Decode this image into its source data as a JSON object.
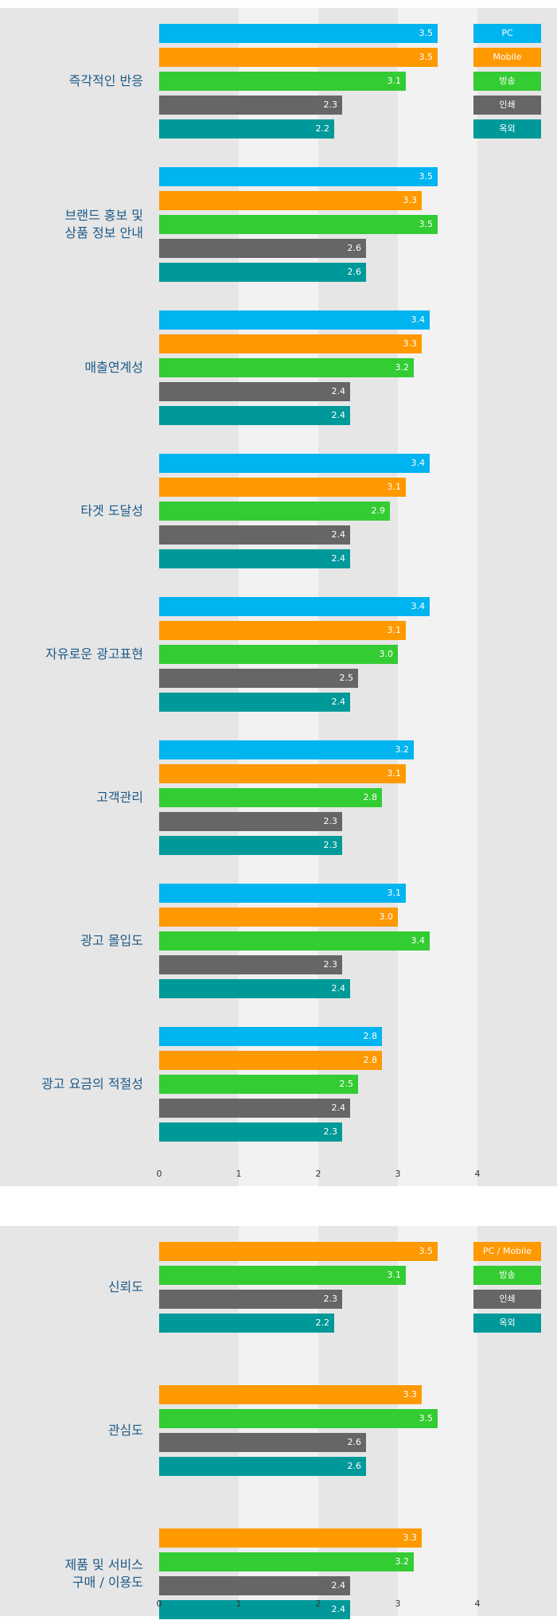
{
  "colors": {
    "PC": "#00b4f0",
    "Mobile": "#ff9900",
    "방송": "#33cc33",
    "인쇄": "#666666",
    "옥외": "#009999",
    "PC / Mobile": "#ff9900"
  },
  "chart_data": [
    {
      "type": "bar",
      "orientation": "horizontal",
      "categories": [
        "즉각적인 반응",
        "브랜드 홍보 및\n상품 정보 안내",
        "매출연계성",
        "타겟 도달성",
        "자유로운 광고표현",
        "고객관리",
        "광고 몰입도",
        "광고 요금의 적절성"
      ],
      "series": [
        {
          "name": "PC",
          "values": [
            3.5,
            3.5,
            3.4,
            3.4,
            3.4,
            3.2,
            3.1,
            2.8
          ]
        },
        {
          "name": "Mobile",
          "values": [
            3.5,
            3.3,
            3.3,
            3.1,
            3.1,
            3.1,
            3.0,
            2.8
          ]
        },
        {
          "name": "방송",
          "values": [
            3.1,
            3.5,
            3.2,
            2.9,
            3.0,
            2.8,
            3.4,
            2.5
          ]
        },
        {
          "name": "인쇄",
          "values": [
            2.3,
            2.6,
            2.4,
            2.4,
            2.5,
            2.3,
            2.3,
            2.4
          ]
        },
        {
          "name": "옥외",
          "values": [
            2.2,
            2.6,
            2.4,
            2.4,
            2.4,
            2.3,
            2.4,
            2.3
          ]
        }
      ],
      "xlim": [
        0,
        4
      ],
      "xticks": [
        "0",
        "1",
        "2",
        "3",
        "4"
      ],
      "legend": [
        "PC",
        "Mobile",
        "방송",
        "인쇄",
        "옥외"
      ],
      "legend_position": "top-right"
    },
    {
      "type": "bar",
      "orientation": "horizontal",
      "categories": [
        "신뢰도",
        "관심도",
        "제품 및 서비스\n구매 / 이용도"
      ],
      "series": [
        {
          "name": "PC / Mobile",
          "values": [
            3.5,
            3.3,
            3.3
          ]
        },
        {
          "name": "방송",
          "values": [
            3.1,
            3.5,
            3.2
          ]
        },
        {
          "name": "인쇄",
          "values": [
            2.3,
            2.6,
            2.4
          ]
        },
        {
          "name": "옥외",
          "values": [
            2.2,
            2.6,
            2.4
          ]
        }
      ],
      "xlim": [
        0,
        4
      ],
      "xticks": [
        "0",
        "1",
        "2",
        "3",
        "4"
      ],
      "legend": [
        "PC / Mobile",
        "방송",
        "인쇄",
        "옥외"
      ],
      "legend_position": "top-right"
    }
  ]
}
